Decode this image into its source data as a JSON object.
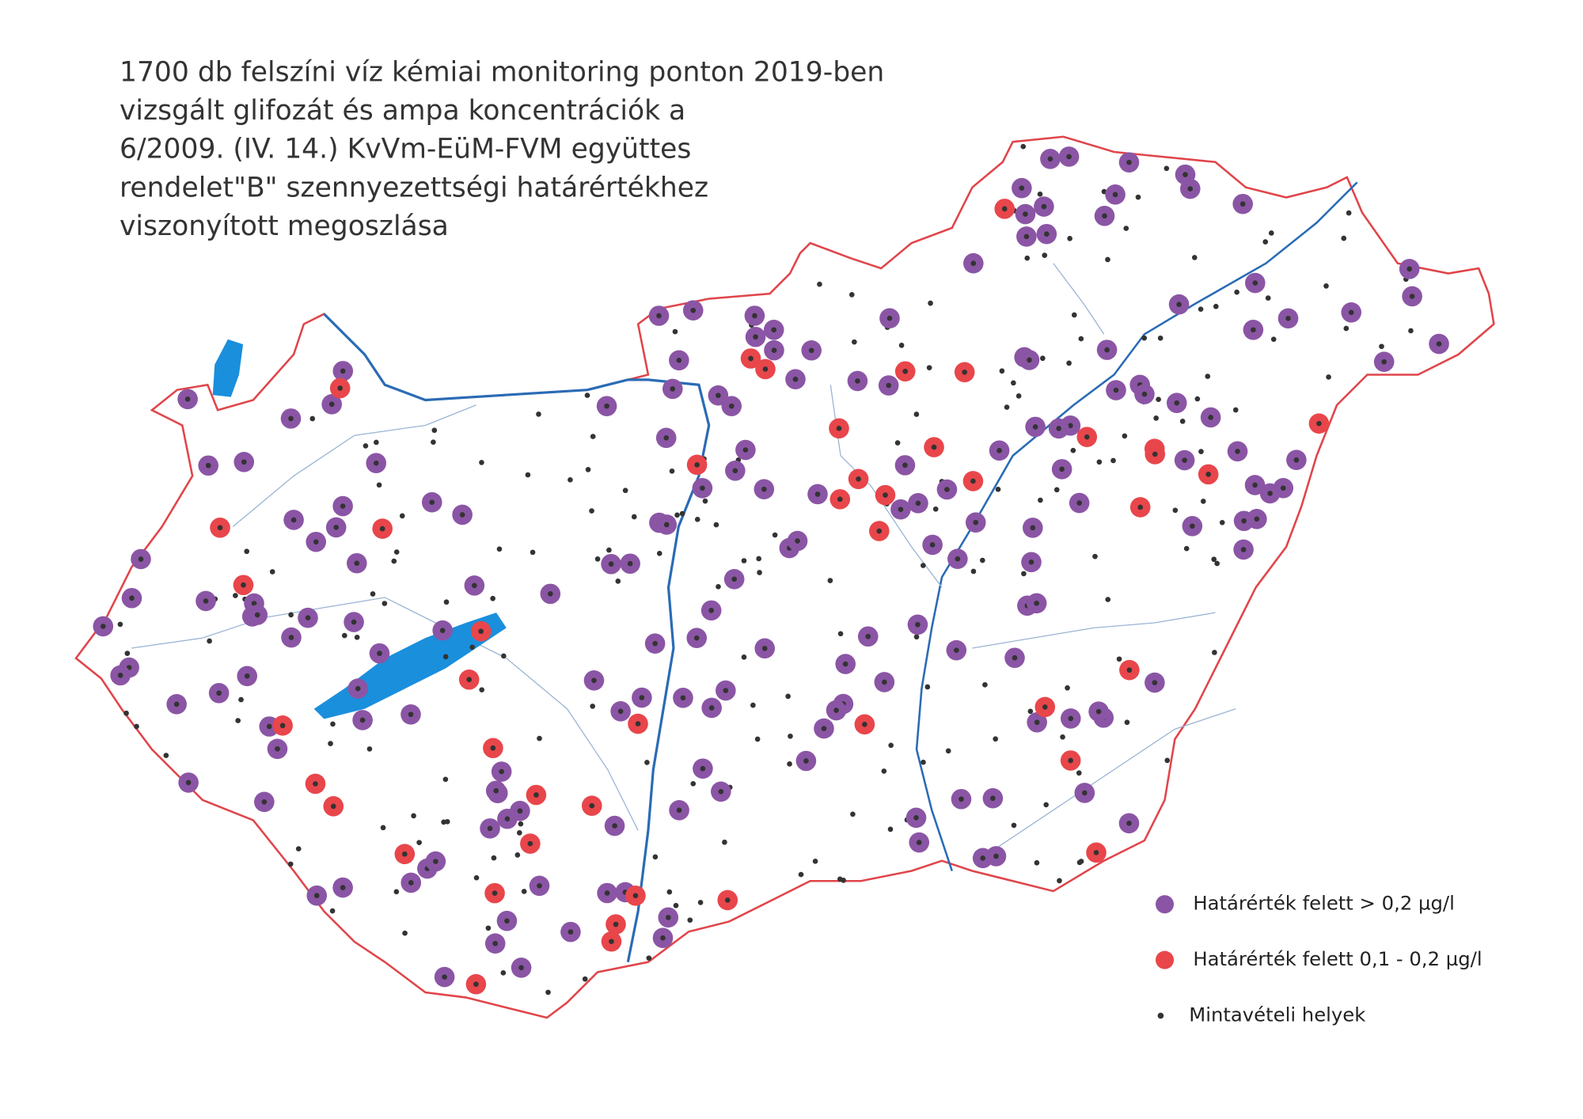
{
  "title": {
    "lines": [
      "1700 db felszíni víz kémiai monitoring ponton 2019-ben",
      "vizsgált glifozát és ampa koncentrációk a",
      "6/2009. (IV. 14.) KvVm-EüM-FVM együttes",
      "rendelet\"B\" szennyezettségi határértékhez",
      "viszonyított megoszlása"
    ]
  },
  "legend": {
    "items": [
      {
        "label": "Határérték felett > 0,2 µg/l"
      },
      {
        "label": "Határérték felett 0,1 - 0,2 µg/l"
      },
      {
        "label": "Mintavételi helyek"
      }
    ]
  }
}
